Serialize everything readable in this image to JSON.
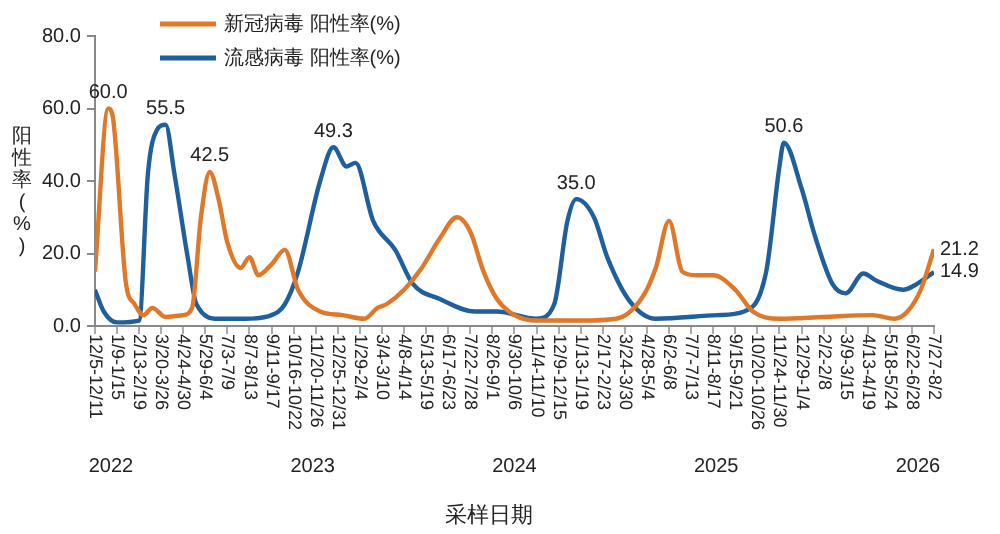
{
  "chart_data": {
    "type": "line",
    "xlabel": "采样日期",
    "ylabel": "阳性率(%)",
    "legend": "top",
    "grid": false,
    "marker": "none",
    "line_style": "solid",
    "xlim": [
      "2022-12-05",
      "2026-07-27"
    ],
    "xticks": [
      {
        "value": "2022-12-05",
        "label": "12/5-12/11"
      },
      {
        "value": "2023-01-09",
        "label": "1/9-1/15"
      },
      {
        "value": "2023-02-13",
        "label": "2/13-2/19"
      },
      {
        "value": "2023-03-20",
        "label": "3/20-3/26"
      },
      {
        "value": "2023-04-24",
        "label": "4/24-4/30"
      },
      {
        "value": "2023-05-29",
        "label": "5/29-6/4"
      },
      {
        "value": "2023-07-03",
        "label": "7/3-7/9"
      },
      {
        "value": "2023-08-07",
        "label": "8/7-8/13"
      },
      {
        "value": "2023-09-11",
        "label": "9/11-9/17"
      },
      {
        "value": "2023-10-16",
        "label": "10/16-10/22"
      },
      {
        "value": "2023-11-20",
        "label": "11/20-11/26"
      },
      {
        "value": "2023-12-25",
        "label": "12/25-12/31"
      },
      {
        "value": "2024-01-29",
        "label": "1/29-2/4"
      },
      {
        "value": "2024-03-04",
        "label": "3/4-3/10"
      },
      {
        "value": "2024-04-08",
        "label": "4/8-4/14"
      },
      {
        "value": "2024-05-13",
        "label": "5/13-5/19"
      },
      {
        "value": "2024-06-17",
        "label": "6/17-6/23"
      },
      {
        "value": "2024-07-22",
        "label": "7/22-7/28"
      },
      {
        "value": "2024-08-26",
        "label": "8/26-9/1"
      },
      {
        "value": "2024-09-30",
        "label": "9/30-10/6"
      },
      {
        "value": "2024-11-04",
        "label": "11/4-11/10"
      },
      {
        "value": "2024-12-09",
        "label": "12/9-12/15"
      },
      {
        "value": "2025-01-13",
        "label": "1/13-1/19"
      },
      {
        "value": "2025-02-17",
        "label": "2/17-2/23"
      },
      {
        "value": "2025-03-24",
        "label": "3/24-3/30"
      },
      {
        "value": "2025-04-28",
        "label": "4/28-5/4"
      },
      {
        "value": "2025-06-02",
        "label": "6/2-6/8"
      },
      {
        "value": "2025-07-07",
        "label": "7/7-7/13"
      },
      {
        "value": "2025-08-11",
        "label": "8/11-8/17"
      },
      {
        "value": "2025-09-15",
        "label": "9/15-9/21"
      },
      {
        "value": "2025-10-20",
        "label": "10/20-10/26"
      },
      {
        "value": "2025-11-24",
        "label": "11/24-11/30"
      },
      {
        "value": "2025-12-29",
        "label": "12/29-1/4"
      },
      {
        "value": "2026-02-02",
        "label": "2/2-2/8"
      },
      {
        "value": "2026-03-09",
        "label": "3/9-3/15"
      },
      {
        "value": "2026-04-13",
        "label": "4/13-4/19"
      },
      {
        "value": "2026-05-18",
        "label": "5/18-5/24"
      },
      {
        "value": "2026-06-22",
        "label": "6/22-6/28"
      },
      {
        "value": "2026-07-27",
        "label": "7/27-8/2"
      }
    ],
    "ylim": [
      0,
      80
    ],
    "yticks": [
      {
        "value": 0,
        "label": "0.0"
      },
      {
        "value": 20,
        "label": "20.0"
      },
      {
        "value": 40,
        "label": "40.0"
      },
      {
        "value": 60,
        "label": "60.0"
      },
      {
        "value": 80,
        "label": "80.0"
      }
    ],
    "annotations": [
      "2022",
      "2023",
      "2024",
      "2025",
      "2026"
    ],
    "series": [
      {
        "name": "新冠病毒 阳性率(%)",
        "color": "#e0782a",
        "x": [
          "2022-12-05",
          "2022-12-26",
          "2023-01-02",
          "2023-01-23",
          "2023-02-06",
          "2023-02-20",
          "2023-03-06",
          "2023-03-27",
          "2023-04-24",
          "2023-05-08",
          "2023-05-22",
          "2023-06-05",
          "2023-06-19",
          "2023-07-03",
          "2023-07-24",
          "2023-08-07",
          "2023-08-21",
          "2023-09-11",
          "2023-10-02",
          "2023-10-23",
          "2023-11-27",
          "2024-01-01",
          "2024-02-05",
          "2024-02-26",
          "2024-03-11",
          "2024-04-08",
          "2024-05-06",
          "2024-06-03",
          "2024-07-01",
          "2024-07-22",
          "2024-08-12",
          "2024-09-02",
          "2024-09-30",
          "2024-11-04",
          "2025-01-13",
          "2025-03-10",
          "2025-04-21",
          "2025-05-12",
          "2025-06-02",
          "2025-06-23",
          "2025-07-14",
          "2025-08-11",
          "2025-09-15",
          "2025-10-13",
          "2025-11-24",
          "2026-02-02",
          "2026-04-20",
          "2026-05-25",
          "2026-06-15",
          "2026-07-06",
          "2026-07-27"
        ],
        "values": [
          15,
          60.0,
          58,
          12,
          6,
          3,
          5,
          2.5,
          3,
          5,
          30,
          42.5,
          35,
          23,
          16,
          19,
          14,
          17,
          21,
          10,
          4,
          3,
          2,
          5,
          6,
          10,
          16,
          24,
          30,
          26,
          15,
          7.5,
          3,
          1.5,
          1.5,
          2,
          8,
          16,
          29,
          15,
          14,
          14,
          10,
          4,
          2,
          2.5,
          3,
          2,
          4,
          10,
          21.2
        ],
        "value_labels": [
          null,
          "60.0",
          null,
          null,
          null,
          null,
          null,
          null,
          null,
          null,
          null,
          "42.5",
          null,
          null,
          null,
          null,
          null,
          null,
          null,
          null,
          null,
          null,
          null,
          null,
          null,
          null,
          null,
          null,
          null,
          null,
          null,
          null,
          null,
          null,
          null,
          null,
          null,
          null,
          null,
          null,
          null,
          null,
          null,
          null,
          null,
          null,
          null,
          null,
          null,
          null,
          "21.2"
        ]
      },
      {
        "name": "流感病毒 阳性率(%)",
        "color": "#1f5f9c",
        "x": [
          "2022-12-05",
          "2022-12-19",
          "2023-01-09",
          "2023-02-13",
          "2023-02-27",
          "2023-03-13",
          "2023-03-27",
          "2023-04-10",
          "2023-05-01",
          "2023-05-15",
          "2023-06-19",
          "2023-07-31",
          "2023-09-11",
          "2023-10-02",
          "2023-10-23",
          "2023-11-27",
          "2023-12-18",
          "2024-01-08",
          "2024-01-22",
          "2024-02-19",
          "2024-03-25",
          "2024-04-22",
          "2024-06-03",
          "2024-07-29",
          "2024-09-02",
          "2024-11-04",
          "2024-12-02",
          "2024-12-23",
          "2025-01-06",
          "2025-02-03",
          "2025-02-24",
          "2025-03-31",
          "2025-05-12",
          "2025-08-18",
          "2025-09-29",
          "2025-11-03",
          "2025-11-24",
          "2025-12-01",
          "2025-12-29",
          "2026-01-19",
          "2026-02-16",
          "2026-03-09",
          "2026-04-06",
          "2026-04-27",
          "2026-06-08",
          "2026-06-29",
          "2026-07-27"
        ],
        "values": [
          10,
          4,
          1,
          1.5,
          42,
          54,
          55.5,
          42,
          19,
          6,
          2,
          2,
          3,
          6,
          15,
          40,
          49.3,
          44,
          45,
          29,
          21,
          11.6,
          7.5,
          4,
          4,
          2,
          6,
          29,
          35.0,
          30,
          19,
          7,
          2,
          3,
          4,
          15,
          44,
          50.6,
          38,
          25,
          11.6,
          9,
          14.5,
          12.5,
          10,
          11.5,
          14.9
        ],
        "value_labels": [
          null,
          null,
          null,
          null,
          null,
          null,
          "55.5",
          null,
          null,
          null,
          null,
          null,
          null,
          null,
          null,
          null,
          "49.3",
          null,
          null,
          null,
          null,
          null,
          null,
          null,
          null,
          null,
          null,
          null,
          "35.0",
          null,
          null,
          null,
          null,
          null,
          null,
          null,
          null,
          "50.6",
          null,
          null,
          null,
          null,
          null,
          null,
          null,
          null,
          "14.9"
        ]
      }
    ]
  }
}
